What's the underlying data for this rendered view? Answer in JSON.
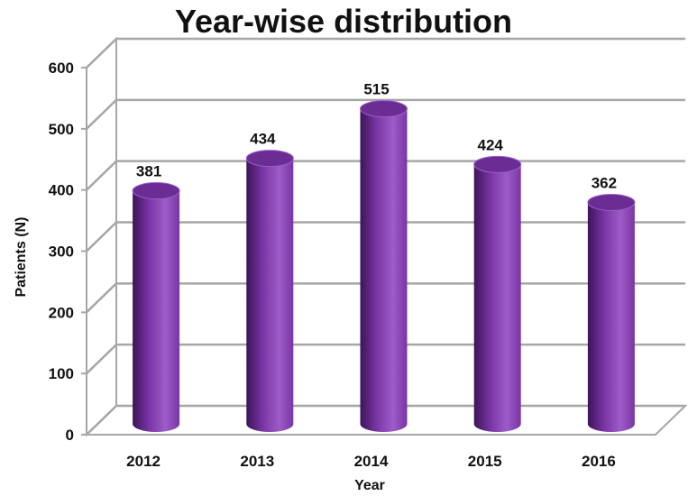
{
  "chart_data": {
    "type": "bar",
    "style": "3d-cylinder",
    "title": "Year-wise distribution",
    "xlabel": "Year",
    "ylabel": "Patients (N)",
    "categories": [
      "2012",
      "2013",
      "2014",
      "2015",
      "2016"
    ],
    "values": [
      381,
      434,
      515,
      424,
      362
    ],
    "yticks": [
      0,
      100,
      200,
      300,
      400,
      500,
      600
    ],
    "ylim": [
      0,
      600
    ],
    "grid": true,
    "legend": "none",
    "colors": {
      "bar": "#7a35a5",
      "bar_dark": "#3c1458",
      "bar_light": "#9d5cc8",
      "bar_top": "#6a2d94",
      "grid": "#a6a6a6",
      "text": "#111111"
    }
  }
}
